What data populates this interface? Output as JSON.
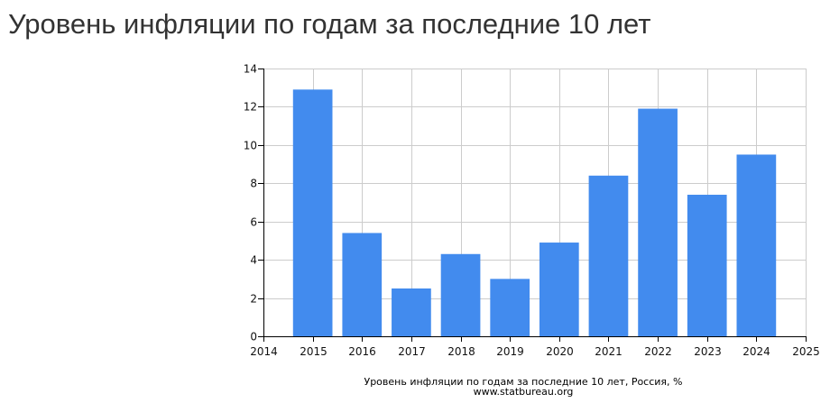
{
  "header": {
    "title": "Уровень инфляции по годам за последние 10 лет"
  },
  "chart_data": {
    "type": "bar",
    "title": "Уровень инфляции по годам за последние 10 лет, Россия, %",
    "source": "www.statbureau.org",
    "xlabel": "",
    "ylabel": "",
    "categories": [
      "2015",
      "2016",
      "2017",
      "2018",
      "2019",
      "2020",
      "2021",
      "2022",
      "2023",
      "2024"
    ],
    "values": [
      12.9,
      5.4,
      2.5,
      4.3,
      3.0,
      4.9,
      8.4,
      11.9,
      7.4,
      9.5
    ],
    "x_ticks": [
      "2014",
      "2015",
      "2016",
      "2017",
      "2018",
      "2019",
      "2020",
      "2021",
      "2022",
      "2023",
      "2024",
      "2025"
    ],
    "y_ticks": [
      "0",
      "2",
      "4",
      "6",
      "8",
      "10",
      "12",
      "14"
    ],
    "ylim": [
      0,
      14
    ],
    "grid": true,
    "legend": "none",
    "bar_color": "#428bee",
    "grid_color": "#cccccc",
    "axis_color": "#000000"
  }
}
